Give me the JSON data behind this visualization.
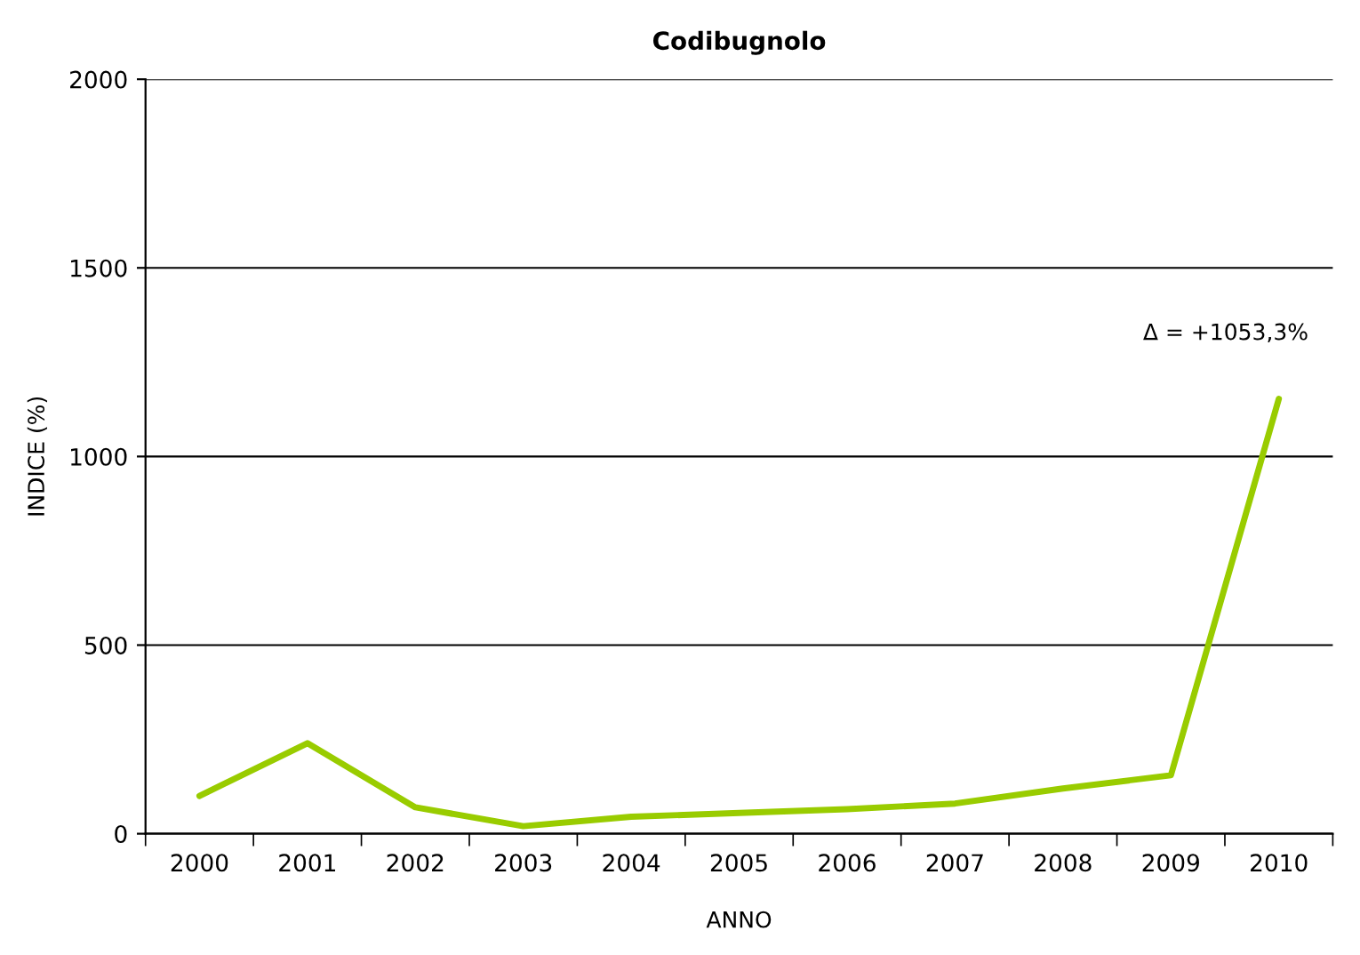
{
  "chart_data": {
    "type": "line",
    "title": "Codibugnolo",
    "xlabel": "ANNO",
    "ylabel": "INDICE (%)",
    "categories": [
      "2000",
      "2001",
      "2002",
      "2003",
      "2004",
      "2005",
      "2006",
      "2007",
      "2008",
      "2009",
      "2010"
    ],
    "series": [
      {
        "color": "#99cc00",
        "values": [
          100,
          240,
          70,
          20,
          45,
          55,
          65,
          80,
          120,
          155,
          1153
        ]
      }
    ],
    "ylim": [
      0,
      2000
    ],
    "yticks": [
      0,
      500,
      1000,
      1500,
      2000
    ],
    "grid": "y",
    "legend": false,
    "marker": "none",
    "line_style": "solid",
    "annotations": [
      {
        "text": "Δ = +1053,3%",
        "x": "2010",
        "y": 1153
      }
    ]
  }
}
